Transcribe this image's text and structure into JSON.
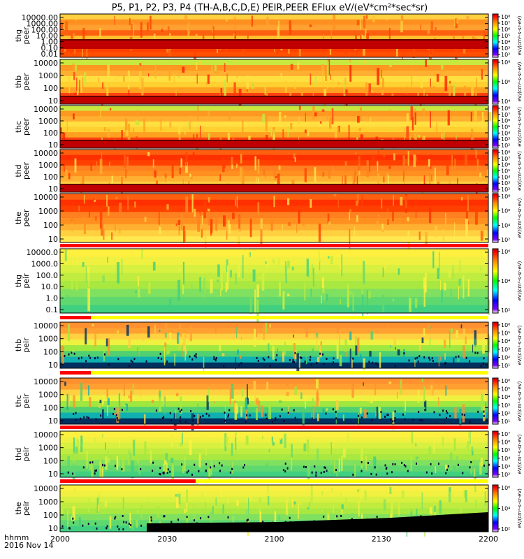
{
  "chart_data": {
    "type": "heatmap",
    "title": "P5, P1, P2, P3, P4 (TH-A,B,C,D,E) PEIR,PEER EFlux eV/(eV*cm²*sec*sr)",
    "x_ticks": [
      "2000",
      "2030",
      "2100",
      "2130",
      "2200"
    ],
    "x_label_line1": "hhmm",
    "x_label_line2": "2016 Nov 14",
    "colorbar_unit_label": "[eV/(cm²-s-sr-eV)]",
    "panels": [
      {
        "id": "thg_peer",
        "probe": "thg",
        "species": "peer",
        "y_ticks": [
          "10000.00",
          "1000.00",
          "100.00",
          "10.00",
          "1.00",
          "0.10",
          "0.01"
        ],
        "cb_ticks": [
          "10⁸",
          "10⁷",
          "10⁶",
          "10⁵",
          "10⁴",
          "10³",
          "10²"
        ],
        "cb_label": "eV/(cm²-s-sr-eV)"
      },
      {
        "id": "thb_peer",
        "probe": "thb",
        "species": "peer",
        "y_ticks": [
          "10000",
          "1000",
          "100",
          "10"
        ],
        "cb_ticks": [
          "10⁸",
          "10⁶",
          "10⁴"
        ],
        "cb_label": "eV/(cm²-s-sr-eV)"
      },
      {
        "id": "thc_peer",
        "probe": "thc",
        "species": "peer",
        "y_ticks": [
          "10000",
          "1000",
          "100",
          "10"
        ],
        "cb_ticks": [
          "10⁸",
          "10⁷",
          "10⁶",
          "10⁵",
          "10⁴",
          "10³",
          "10²"
        ],
        "cb_label": "eV/(cm²-s-sr-eV)"
      },
      {
        "id": "thd_peer",
        "probe": "thd",
        "species": "peer",
        "y_ticks": [
          "10000",
          "1000",
          "100",
          "10"
        ],
        "cb_ticks": [
          "10⁸",
          "10⁷",
          "10⁶",
          "10⁵",
          "10⁴",
          "10³",
          "10²"
        ],
        "cb_label": "eV/(cm²-s-sr-eV)"
      },
      {
        "id": "the_peer",
        "probe": "the",
        "species": "peer",
        "y_ticks": [
          "10000",
          "1000",
          "100",
          "10"
        ],
        "cb_ticks": [
          "10⁸",
          "10⁶",
          "10⁴",
          "10²"
        ],
        "cb_label": "eV/(cm²-s-sr-eV)"
      },
      {
        "id": "thg_peir",
        "probe": "thg",
        "species": "peir",
        "y_ticks": [
          "10000.0",
          "1000.0",
          "100.0",
          "10.0",
          "1.0",
          "0.1"
        ],
        "cb_ticks": [
          "10⁶",
          "10⁴",
          "10²"
        ],
        "cb_label": "eV/(cm²-s-sr-eV)"
      },
      {
        "id": "thb_peir",
        "probe": "thb",
        "species": "peir",
        "y_ticks": [
          "10000",
          "1000",
          "100",
          "10"
        ],
        "cb_ticks": [
          "10⁶",
          "10⁵",
          "10⁴",
          "10³",
          "10²",
          "10¹"
        ],
        "cb_label": "eV/(cm²-s-sr-eV)"
      },
      {
        "id": "thc_peir",
        "probe": "thc",
        "species": "peir",
        "y_ticks": [
          "10000",
          "1000",
          "100",
          "10"
        ],
        "cb_ticks": [
          "10⁶",
          "10⁵",
          "10⁴",
          "10³",
          "10²",
          "10¹"
        ],
        "cb_label": "eV/(cm²-s-sr-eV)"
      },
      {
        "id": "thd_peir",
        "probe": "thd",
        "species": "peir",
        "y_ticks": [
          "10000",
          "1000",
          "100",
          "10"
        ],
        "cb_ticks": [
          "10⁷",
          "10⁶",
          "10⁵",
          "10⁴",
          "10³",
          "10²"
        ],
        "cb_label": "eV/(cm²-s-sr-eV)"
      },
      {
        "id": "the_peir",
        "probe": "the",
        "species": "peir",
        "y_ticks": [
          "10000",
          "1000",
          "100",
          "10"
        ],
        "cb_ticks": [
          "10⁶",
          "10⁴",
          "10²"
        ],
        "cb_label": "eV/(cm²-s-sr-eV)"
      }
    ],
    "colors": {
      "background": "#ffffff",
      "axis": "#000000",
      "flag_red": "#ff0000",
      "flag_yellow": "#ffff00",
      "flag_white": "#ffffff"
    }
  }
}
